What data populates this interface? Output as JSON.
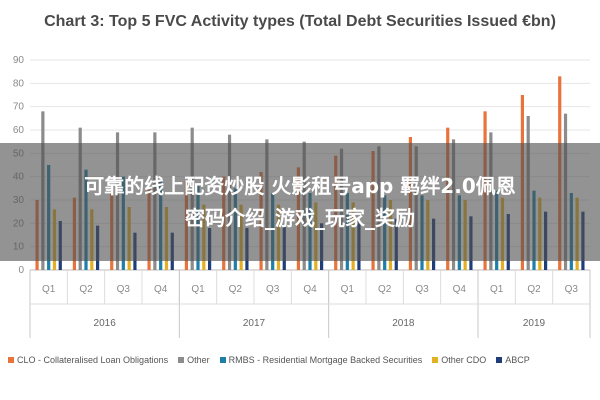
{
  "overlay": {
    "line1": "可靠的线上配资炒股 火影租号app 羁绊2.0佩恩",
    "line2": "密码介绍_游戏_玩家_奖励"
  },
  "chart_data": {
    "type": "bar",
    "title": "Chart 3: Top 5 FVC Activity types (Total Debt Securities Issued €bn)",
    "xlabel": "",
    "ylabel": "",
    "ylim": [
      0,
      90
    ],
    "yticks": [
      0,
      10,
      20,
      30,
      40,
      50,
      60,
      70,
      80,
      90
    ],
    "grid": true,
    "legend_position": "bottom",
    "groups": [
      {
        "label": "2016",
        "categories": [
          "Q1",
          "Q2",
          "Q3",
          "Q4"
        ]
      },
      {
        "label": "2017",
        "categories": [
          "Q1",
          "Q2",
          "Q3",
          "Q4"
        ]
      },
      {
        "label": "2018",
        "categories": [
          "Q1",
          "Q2",
          "Q3",
          "Q4"
        ]
      },
      {
        "label": "2019",
        "categories": [
          "Q1",
          "Q2",
          "Q3"
        ]
      }
    ],
    "categories": [
      "Q1",
      "Q2",
      "Q3",
      "Q4",
      "Q1",
      "Q2",
      "Q3",
      "Q4",
      "Q1",
      "Q2",
      "Q3",
      "Q4",
      "Q1",
      "Q2",
      "Q3"
    ],
    "series": [
      {
        "name": "CLO - Collateralised Loan Obligations",
        "color": "#e8743b",
        "values": [
          30,
          31,
          33,
          35,
          38,
          40,
          42,
          44,
          49,
          51,
          57,
          61,
          68,
          75,
          83
        ]
      },
      {
        "name": "Other",
        "color": "#8c8c8c",
        "values": [
          68,
          61,
          59,
          59,
          61,
          58,
          56,
          55,
          52,
          53,
          53,
          56,
          59,
          66,
          67
        ]
      },
      {
        "name": "RMBS - Residential Mortgage Backed Securities",
        "color": "#1f7fa6",
        "values": [
          45,
          43,
          40,
          38,
          36,
          35,
          33,
          33,
          33,
          32,
          32,
          32,
          34,
          34,
          33
        ]
      },
      {
        "name": "Other CDO",
        "color": "#e3b023",
        "values": [
          26,
          26,
          27,
          27,
          28,
          28,
          28,
          29,
          29,
          30,
          30,
          30,
          31,
          31,
          31
        ]
      },
      {
        "name": "ABCP",
        "color": "#1f3d7a",
        "values": [
          21,
          19,
          16,
          16,
          18,
          18,
          19,
          20,
          21,
          22,
          22,
          23,
          24,
          25,
          25
        ]
      }
    ]
  }
}
